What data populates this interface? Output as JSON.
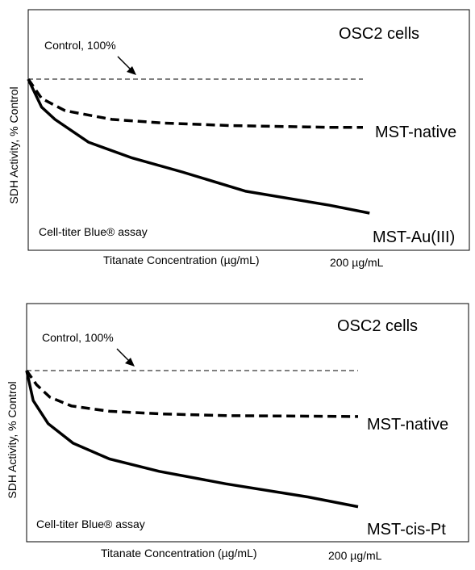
{
  "chart_data": [
    {
      "type": "line",
      "title": "OSC2 cells",
      "xlabel": "Titanate Concentration (µg/mL)",
      "ylabel": "SDH Activity, % Control",
      "x_max_label": "200 µg/mL",
      "assay_label": "Cell-titer Blue® assay",
      "control_annotation": "Control, 100%",
      "xlim": [
        0,
        200
      ],
      "ylim": [
        0,
        100
      ],
      "control_value": 100,
      "control_line_end": 200,
      "series": [
        {
          "name": "MST-native",
          "style": "dashed",
          "x": [
            0,
            8,
            22,
            50,
            80,
            120,
            180,
            200
          ],
          "y": [
            100,
            89,
            82,
            77,
            75,
            73.5,
            72.5,
            72.5
          ]
        },
        {
          "name": "MST-Au(III)",
          "style": "solid",
          "x": [
            0,
            8,
            16,
            36,
            62,
            92,
            130,
            180,
            204
          ],
          "y": [
            100,
            84,
            77,
            64,
            55,
            47,
            36,
            28,
            23.5
          ]
        }
      ],
      "frame": {
        "x": 35,
        "y": 12,
        "w": 547,
        "h": 298
      },
      "plot": {
        "x0": 35,
        "x1": 450,
        "y100": 98,
        "y0": 315
      }
    },
    {
      "type": "line",
      "title": "OSC2 cells",
      "xlabel": "Titanate Concentration (µg/mL)",
      "ylabel": "SDH Activity, % Control",
      "x_max_label": "200 µg/mL",
      "assay_label": "Cell-titer Blue® assay",
      "control_annotation": "Control, 100%",
      "xlim": [
        0,
        200
      ],
      "ylim": [
        0,
        100
      ],
      "control_value": 100,
      "control_line_end": 200,
      "series": [
        {
          "name": "MST-native",
          "style": "dashed",
          "x": [
            0,
            6,
            14,
            27,
            50,
            82,
            120,
            200
          ],
          "y": [
            100,
            92,
            85,
            80,
            77,
            75.5,
            74.5,
            74
          ]
        },
        {
          "name": "MST-cis-Pt",
          "style": "solid",
          "x": [
            0,
            4,
            13,
            28,
            50,
            80,
            120,
            170,
            200
          ],
          "y": [
            100,
            83,
            70,
            59,
            50,
            43,
            36,
            28.5,
            23
          ]
        }
      ],
      "frame": {
        "x": 33,
        "y": 376,
        "w": 548,
        "h": 295
      },
      "plot": {
        "x0": 33,
        "x1": 444,
        "y100": 459,
        "y0": 678
      }
    }
  ]
}
